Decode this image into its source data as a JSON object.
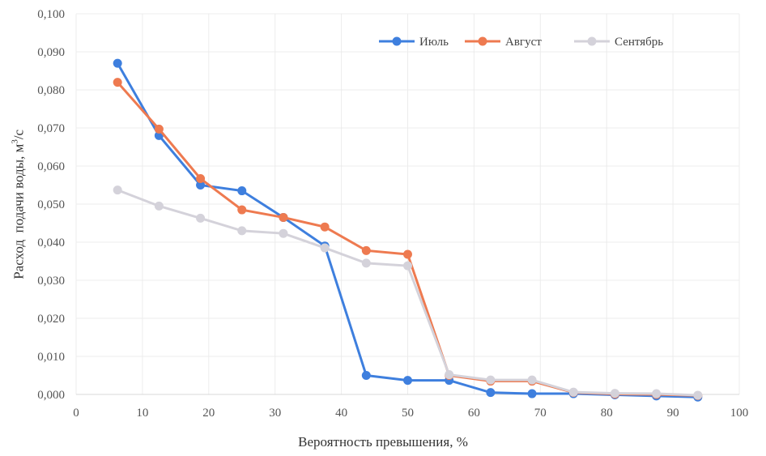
{
  "chart_data": {
    "type": "line",
    "title": "",
    "xlabel": "Вероятность превышения, %",
    "ylabel_main": "Расход  подачи воды, м",
    "ylabel_sup": "3",
    "ylabel_tail": "/с",
    "xlim": [
      0,
      100
    ],
    "ylim": [
      0,
      0.1
    ],
    "xticks": [
      0,
      10,
      20,
      30,
      40,
      50,
      60,
      70,
      80,
      90,
      100
    ],
    "xtick_labels": [
      "0",
      "10",
      "20",
      "30",
      "40",
      "50",
      "60",
      "70",
      "80",
      "90",
      "100"
    ],
    "yticks": [
      0,
      0.01,
      0.02,
      0.03,
      0.04,
      0.05,
      0.06,
      0.07,
      0.08,
      0.09,
      0.1
    ],
    "ytick_labels": [
      "0,000",
      "0,010",
      "0,020",
      "0,030",
      "0,040",
      "0,050",
      "0,060",
      "0,070",
      "0,080",
      "0,090",
      "0,100"
    ],
    "grid": true,
    "legend_placement": "top-right",
    "x": [
      6.25,
      12.5,
      18.75,
      25,
      31.25,
      37.5,
      43.75,
      50,
      56.25,
      62.5,
      68.75,
      75,
      81.25,
      87.5,
      93.75
    ],
    "series": [
      {
        "name": "Июль",
        "color": "#3e7fde",
        "values": [
          0.087,
          0.068,
          0.055,
          0.0535,
          0.0465,
          0.039,
          0.005,
          0.0037,
          0.0037,
          0.0005,
          0.0002,
          0.0002,
          -0.0001,
          -0.0004,
          -0.0007
        ]
      },
      {
        "name": "Август",
        "color": "#ee7a50",
        "values": [
          0.082,
          0.0697,
          0.0567,
          0.0485,
          0.0465,
          0.044,
          0.0378,
          0.0368,
          0.005,
          0.0035,
          0.0035,
          0.0005,
          0.0001,
          0.0,
          -0.0003
        ]
      },
      {
        "name": "Сентябрь",
        "color": "#d4d2da",
        "values": [
          0.0537,
          0.0495,
          0.0463,
          0.043,
          0.0423,
          0.0385,
          0.0345,
          0.0338,
          0.0052,
          0.0038,
          0.0038,
          0.0006,
          0.0003,
          0.0002,
          -0.0002
        ]
      }
    ]
  }
}
